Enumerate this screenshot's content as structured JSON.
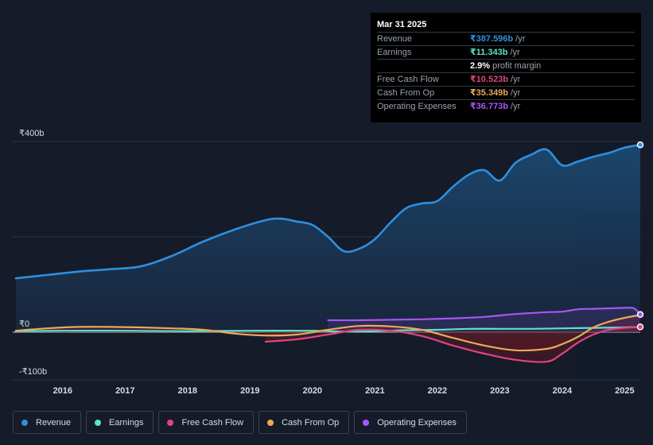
{
  "tooltip": {
    "date": "Mar 31 2025",
    "rows": [
      {
        "label": "Revenue",
        "value": "₹387.596b",
        "unit": "/yr",
        "color": "#2e8fe0"
      },
      {
        "label": "Earnings",
        "value": "₹11.343b",
        "unit": "/yr",
        "color": "#5fe0c8"
      },
      {
        "label": "",
        "value": "2.9%",
        "unit": "profit margin",
        "color": "#ffffff"
      },
      {
        "label": "Free Cash Flow",
        "value": "₹10.523b",
        "unit": "/yr",
        "color": "#e0447f"
      },
      {
        "label": "Cash From Op",
        "value": "₹35.349b",
        "unit": "/yr",
        "color": "#eba95b"
      },
      {
        "label": "Operating Expenses",
        "value": "₹36.773b",
        "unit": "/yr",
        "color": "#a855f7"
      }
    ]
  },
  "legend": [
    {
      "label": "Revenue",
      "color": "#2e8fe0"
    },
    {
      "label": "Earnings",
      "color": "#5fe0c8"
    },
    {
      "label": "Free Cash Flow",
      "color": "#e0447f"
    },
    {
      "label": "Cash From Op",
      "color": "#eba95b"
    },
    {
      "label": "Operating Expenses",
      "color": "#a855f7"
    }
  ],
  "chart_data": {
    "type": "area",
    "title": "",
    "xlabel": "",
    "ylabel": "",
    "xlim": [
      2015.2,
      2025.25
    ],
    "ylim": [
      -100,
      400
    ],
    "y_tick_labels": [
      {
        "value": 400,
        "label": "₹400b"
      },
      {
        "value": 0,
        "label": "₹0"
      },
      {
        "value": -100,
        "label": "-₹100b"
      }
    ],
    "x_ticks": [
      2016,
      2017,
      2018,
      2019,
      2020,
      2021,
      2022,
      2023,
      2024,
      2025
    ],
    "x_tick_labels": [
      "2016",
      "2017",
      "2018",
      "2019",
      "2020",
      "2021",
      "2022",
      "2023",
      "2024",
      "2025"
    ],
    "forecast_start": 2024.25,
    "series": [
      {
        "name": "Revenue",
        "color": "#2e8fe0",
        "fill": true,
        "x": [
          2015.25,
          2015.75,
          2016.25,
          2016.75,
          2017.25,
          2017.75,
          2018.25,
          2018.75,
          2019.25,
          2019.5,
          2019.75,
          2020.0,
          2020.25,
          2020.5,
          2020.75,
          2021.0,
          2021.25,
          2021.5,
          2021.75,
          2022.0,
          2022.25,
          2022.5,
          2022.75,
          2023.0,
          2023.25,
          2023.5,
          2023.75,
          2024.0,
          2024.25,
          2024.5,
          2024.75,
          2025.0,
          2025.25
        ],
        "values": [
          113,
          120,
          127,
          132,
          138,
          160,
          190,
          215,
          235,
          238,
          232,
          225,
          200,
          170,
          175,
          195,
          230,
          260,
          270,
          275,
          305,
          330,
          340,
          318,
          355,
          372,
          383,
          350,
          358,
          368,
          376,
          387,
          393
        ]
      },
      {
        "name": "Earnings",
        "color": "#5fe0c8",
        "fill": false,
        "x": [
          2015.25,
          2016.0,
          2017.0,
          2018.0,
          2019.0,
          2020.0,
          2020.5,
          2021.0,
          2021.5,
          2022.0,
          2022.5,
          2023.0,
          2023.5,
          2024.0,
          2024.5,
          2025.0,
          2025.25
        ],
        "values": [
          2,
          3,
          3,
          2,
          3,
          3,
          1,
          2,
          4,
          5,
          7,
          7,
          7,
          8,
          9,
          10,
          11
        ]
      },
      {
        "name": "Free Cash Flow",
        "color": "#e0447f",
        "fill": true,
        "x": [
          2019.25,
          2019.75,
          2020.25,
          2020.75,
          2021.25,
          2021.75,
          2022.25,
          2022.75,
          2023.25,
          2023.75,
          2024.0,
          2024.25,
          2024.5,
          2024.75,
          2025.0,
          2025.25
        ],
        "values": [
          -20,
          -15,
          -5,
          5,
          3,
          -8,
          -28,
          -45,
          -58,
          -62,
          -45,
          -22,
          -5,
          5,
          9,
          11
        ]
      },
      {
        "name": "Cash From Op",
        "color": "#eba95b",
        "fill": true,
        "x": [
          2015.25,
          2015.75,
          2016.25,
          2016.75,
          2017.25,
          2017.75,
          2018.25,
          2018.75,
          2019.25,
          2019.75,
          2020.25,
          2020.75,
          2021.25,
          2021.75,
          2022.25,
          2022.75,
          2023.25,
          2023.75,
          2024.0,
          2024.25,
          2024.5,
          2024.75,
          2025.0,
          2025.25
        ],
        "values": [
          3,
          8,
          11,
          11,
          10,
          8,
          5,
          -3,
          -7,
          -5,
          5,
          13,
          12,
          5,
          -12,
          -28,
          -38,
          -35,
          -25,
          -10,
          10,
          22,
          30,
          36
        ]
      },
      {
        "name": "Operating Expenses",
        "color": "#a855f7",
        "fill": true,
        "x": [
          2020.25,
          2020.75,
          2021.25,
          2021.75,
          2022.25,
          2022.75,
          2023.25,
          2023.75,
          2024.0,
          2024.25,
          2024.5,
          2024.75,
          2025.0,
          2025.15,
          2025.25
        ],
        "values": [
          25,
          25,
          26,
          27,
          29,
          32,
          38,
          42,
          43,
          48,
          49,
          50,
          51,
          50,
          37
        ]
      }
    ]
  }
}
